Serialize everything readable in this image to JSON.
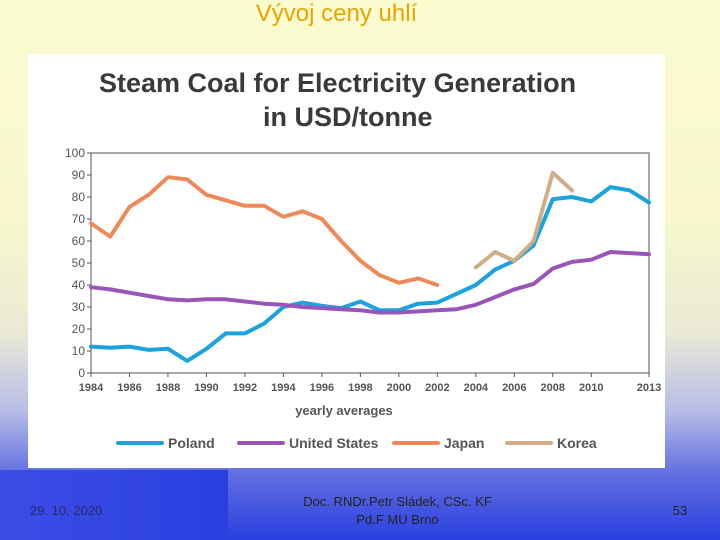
{
  "slide": {
    "title": "Vývoj ceny uhlí",
    "date": "29. 10. 2020",
    "author_line1": "Doc. RNDr.Petr Sládek, CSc. KF",
    "author_line2": "Pd.F MU Brno",
    "page": "53"
  },
  "colors": {
    "poland": "#1aa3dd",
    "united_states": "#9a55b8",
    "japan": "#ee8a5a",
    "korea": "#cfae85",
    "chart_title": "#3a3a3a"
  },
  "chart_data": {
    "type": "line",
    "title_line1": "Steam Coal for Electricity Generation",
    "title_line2": "in USD/tonne",
    "xlabel": "yearly averages",
    "ylabel": "",
    "ylim": [
      0,
      100
    ],
    "xlim": [
      1984,
      2013
    ],
    "y_ticks": [
      "0",
      "10",
      "20",
      "30",
      "40",
      "50",
      "60",
      "70",
      "80",
      "90",
      "100"
    ],
    "x_ticks": [
      {
        "year": 1984,
        "label": "1984"
      },
      {
        "year": 1986,
        "label": "1986"
      },
      {
        "year": 1988,
        "label": "1988"
      },
      {
        "year": 1990,
        "label": "1990"
      },
      {
        "year": 1992,
        "label": "1992"
      },
      {
        "year": 1994,
        "label": "1994"
      },
      {
        "year": 1996,
        "label": "1996"
      },
      {
        "year": 1998,
        "label": "1998"
      },
      {
        "year": 2000,
        "label": "2000"
      },
      {
        "year": 2002,
        "label": "2002"
      },
      {
        "year": 2004,
        "label": "2004"
      },
      {
        "year": 2006,
        "label": "2006"
      },
      {
        "year": 2008,
        "label": "2008"
      },
      {
        "year": 2010,
        "label": "2010"
      },
      {
        "year": 2013,
        "label": "2013"
      }
    ],
    "legend_position": "bottom",
    "grid": false,
    "series": [
      {
        "name": "Poland",
        "color_key": "poland",
        "x": [
          1984,
          1985,
          1986,
          1987,
          1988,
          1989,
          1990,
          1991,
          1992,
          1993,
          1994,
          1995,
          1996,
          1997,
          1998,
          1999,
          2000,
          2001,
          2002,
          2003,
          2004,
          2005,
          2006,
          2007,
          2008,
          2009,
          2010,
          2011,
          2012,
          2013
        ],
        "y": [
          12,
          11.5,
          12,
          10.5,
          11,
          5.5,
          11,
          18,
          18,
          22.5,
          30,
          32,
          30.5,
          29.5,
          32.5,
          28.5,
          28.5,
          31.5,
          32,
          36,
          40,
          47,
          51,
          58,
          79,
          80,
          78,
          84.5,
          83,
          77.5
        ]
      },
      {
        "name": "United States",
        "color_key": "united_states",
        "x": [
          1984,
          1985,
          1986,
          1987,
          1988,
          1989,
          1990,
          1991,
          1992,
          1993,
          1994,
          1995,
          1996,
          1997,
          1998,
          1999,
          2000,
          2001,
          2002,
          2003,
          2004,
          2005,
          2006,
          2007,
          2008,
          2009,
          2010,
          2011,
          2012,
          2013
        ],
        "y": [
          39,
          38,
          36.5,
          35,
          33.5,
          33,
          33.5,
          33.5,
          32.5,
          31.5,
          31,
          30,
          29.5,
          29,
          28.5,
          27.5,
          27.5,
          28,
          28.5,
          29,
          31,
          34.5,
          38,
          40.5,
          47.5,
          50.5,
          51.5,
          55,
          54.5,
          54
        ]
      },
      {
        "name": "Japan",
        "color_key": "japan",
        "x": [
          1984,
          1985,
          1986,
          1987,
          1988,
          1989,
          1990,
          1991,
          1992,
          1993,
          1994,
          1995,
          1996,
          1997,
          1998,
          1999,
          2000,
          2001,
          2002
        ],
        "y": [
          68,
          62,
          75.5,
          81,
          89,
          88,
          81,
          78.5,
          76,
          76,
          71,
          73.5,
          70,
          60,
          51,
          44.5,
          41,
          43,
          40
        ]
      },
      {
        "name": "Korea",
        "color_key": "korea",
        "x": [
          2004,
          2005,
          2006,
          2007,
          2008,
          2009
        ],
        "y": [
          48,
          55,
          51,
          60,
          91,
          83
        ]
      }
    ]
  }
}
